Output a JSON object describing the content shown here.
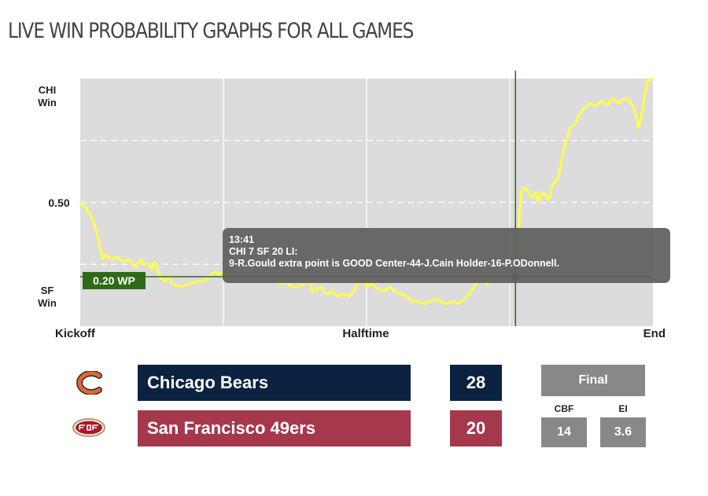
{
  "page": {
    "title": "LIVE WIN PROBABILITY GRAPHS FOR ALL GAMES"
  },
  "chart_data": {
    "type": "line",
    "y_top_label": [
      "CHI",
      "Win"
    ],
    "y_mid_label": "0.50",
    "y_bottom_label": [
      "SF",
      "Win"
    ],
    "x_labels": {
      "start": "Kickoff",
      "middle": "Halftime",
      "end": "End"
    },
    "ylim": [
      0,
      1
    ],
    "xlim": [
      0,
      1
    ],
    "grid": true,
    "series": [
      {
        "color": "#ffff44",
        "x": [
          0,
          0.005,
          0.012,
          0.018,
          0.025,
          0.03,
          0.035,
          0.04,
          0.045,
          0.055,
          0.065,
          0.075,
          0.085,
          0.09,
          0.098,
          0.105,
          0.112,
          0.12,
          0.125,
          0.13,
          0.14,
          0.148,
          0.155,
          0.16,
          0.175,
          0.19,
          0.205,
          0.215,
          0.225,
          0.235,
          0.245,
          0.255,
          0.265,
          0.275,
          0.285,
          0.29,
          0.3,
          0.31,
          0.32,
          0.33,
          0.34,
          0.35,
          0.36,
          0.37,
          0.38,
          0.39,
          0.4,
          0.405,
          0.42,
          0.43,
          0.44,
          0.45,
          0.46,
          0.47,
          0.48,
          0.49,
          0.5,
          0.51,
          0.52,
          0.53,
          0.54,
          0.55,
          0.56,
          0.57,
          0.58,
          0.59,
          0.6,
          0.61,
          0.62,
          0.63,
          0.64,
          0.65,
          0.66,
          0.67,
          0.68,
          0.69,
          0.7,
          0.71,
          0.72,
          0.73,
          0.74,
          0.75,
          0.76,
          0.77,
          0.775,
          0.78,
          0.788,
          0.795,
          0.8,
          0.805,
          0.812,
          0.818,
          0.825,
          0.835,
          0.845,
          0.855,
          0.865,
          0.87,
          0.88,
          0.89,
          0.9,
          0.91,
          0.92,
          0.93,
          0.94,
          0.95,
          0.96,
          0.97,
          0.975,
          0.98,
          0.99,
          1.0
        ],
        "values": [
          0.5,
          0.49,
          0.47,
          0.45,
          0.41,
          0.37,
          0.31,
          0.27,
          0.29,
          0.27,
          0.28,
          0.26,
          0.27,
          0.25,
          0.24,
          0.27,
          0.25,
          0.25,
          0.23,
          0.26,
          0.2,
          0.18,
          0.2,
          0.17,
          0.16,
          0.17,
          0.18,
          0.18,
          0.2,
          0.22,
          0.21,
          0.22,
          0.23,
          0.24,
          0.24,
          0.22,
          0.19,
          0.2,
          0.2,
          0.21,
          0.19,
          0.17,
          0.18,
          0.16,
          0.16,
          0.17,
          0.2,
          0.14,
          0.16,
          0.13,
          0.14,
          0.12,
          0.13,
          0.12,
          0.15,
          0.2,
          0.16,
          0.17,
          0.15,
          0.14,
          0.16,
          0.14,
          0.13,
          0.12,
          0.1,
          0.1,
          0.09,
          0.1,
          0.11,
          0.1,
          0.09,
          0.1,
          0.09,
          0.11,
          0.13,
          0.17,
          0.19,
          0.17,
          0.2,
          0.22,
          0.2,
          0.19,
          0.2,
          0.54,
          0.56,
          0.55,
          0.52,
          0.54,
          0.5,
          0.54,
          0.53,
          0.51,
          0.57,
          0.6,
          0.72,
          0.8,
          0.82,
          0.85,
          0.88,
          0.9,
          0.89,
          0.91,
          0.89,
          0.92,
          0.9,
          0.92,
          0.91,
          0.86,
          0.8,
          0.85,
          0.99,
          1.0
        ]
      }
    ],
    "marker": {
      "x": 0.76,
      "y": 0.2,
      "label": "0.20 WP"
    }
  },
  "tooltip": {
    "time": "13:41",
    "score": "CHI 7 SF 20 LI:",
    "play": "9-R.Gould extra point is GOOD Center-44-J.Cain Holder-16-P.ODonnell."
  },
  "teams": [
    {
      "name": "Chicago Bears",
      "score": "28",
      "color": "#0b2340"
    },
    {
      "name": "San Francisco 49ers",
      "score": "20",
      "color": "#a5384c"
    }
  ],
  "status": {
    "final_label": "Final"
  },
  "metrics": [
    {
      "label": "CBF",
      "value": "14"
    },
    {
      "label": "EI",
      "value": "3.6"
    }
  ]
}
